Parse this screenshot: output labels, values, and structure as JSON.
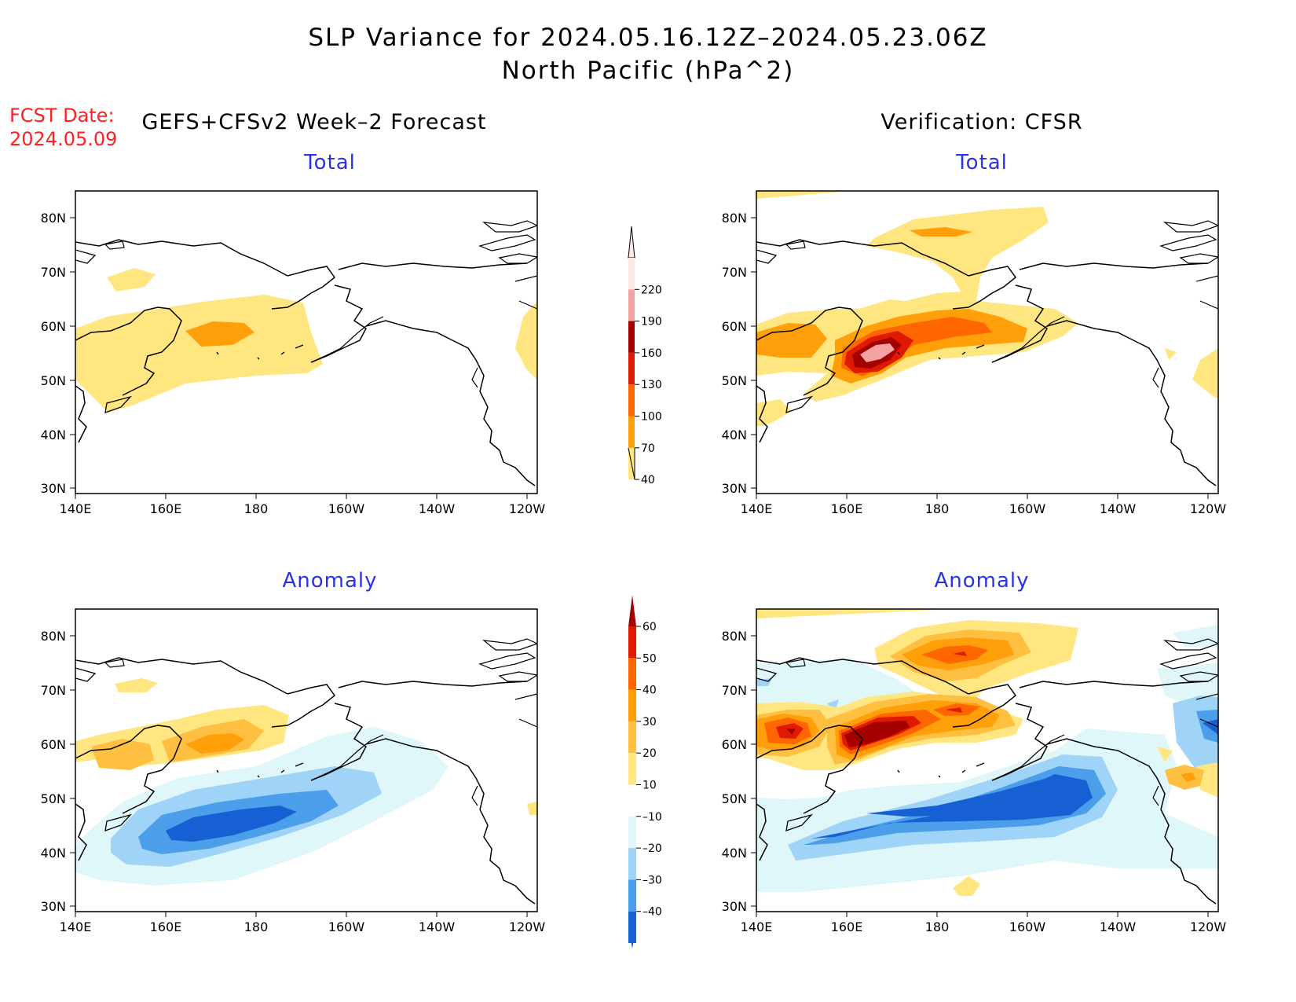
{
  "header": {
    "title_line1": "SLP Variance for 2024.05.16.12Z–2024.05.23.06Z",
    "title_line2": "North Pacific (hPa^2)",
    "fcst_label": "FCST Date:",
    "fcst_date": "2024.05.09"
  },
  "columns": {
    "left_title": "GEFS+CFSv2 Week–2 Forecast",
    "right_title": "Verification: CFSR"
  },
  "panels": {
    "top_left_title": "Total",
    "top_right_title": "Total",
    "bottom_left_title": "Anomaly",
    "bottom_right_title": "Anomaly"
  },
  "axes": {
    "lat_labels": [
      "80N",
      "70N",
      "60N",
      "50N",
      "40N",
      "30N"
    ],
    "lon_labels": [
      "140E",
      "160E",
      "180",
      "160W",
      "140W",
      "120W"
    ]
  },
  "colorbar_total": {
    "labels": [
      "220",
      "190",
      "160",
      "130",
      "100",
      "70",
      "40"
    ],
    "colors": [
      "#fde8e8",
      "#f4a2a2",
      "#a50000",
      "#e01a00",
      "#ff6600",
      "#ff9f0a",
      "#ffe680"
    ]
  },
  "colorbar_anomaly": {
    "labels": [
      "60",
      "50",
      "40",
      "30",
      "20",
      "10",
      "–10",
      "–20",
      "–30",
      "–40"
    ],
    "colors": [
      "#a50000",
      "#e01a00",
      "#ff6600",
      "#ff9f0a",
      "#ffbf40",
      "#ffe680",
      "#ffffff",
      "#e0f7fa",
      "#9fd3f7",
      "#4a9eea",
      "#1760d4",
      "#1760d4"
    ]
  }
}
